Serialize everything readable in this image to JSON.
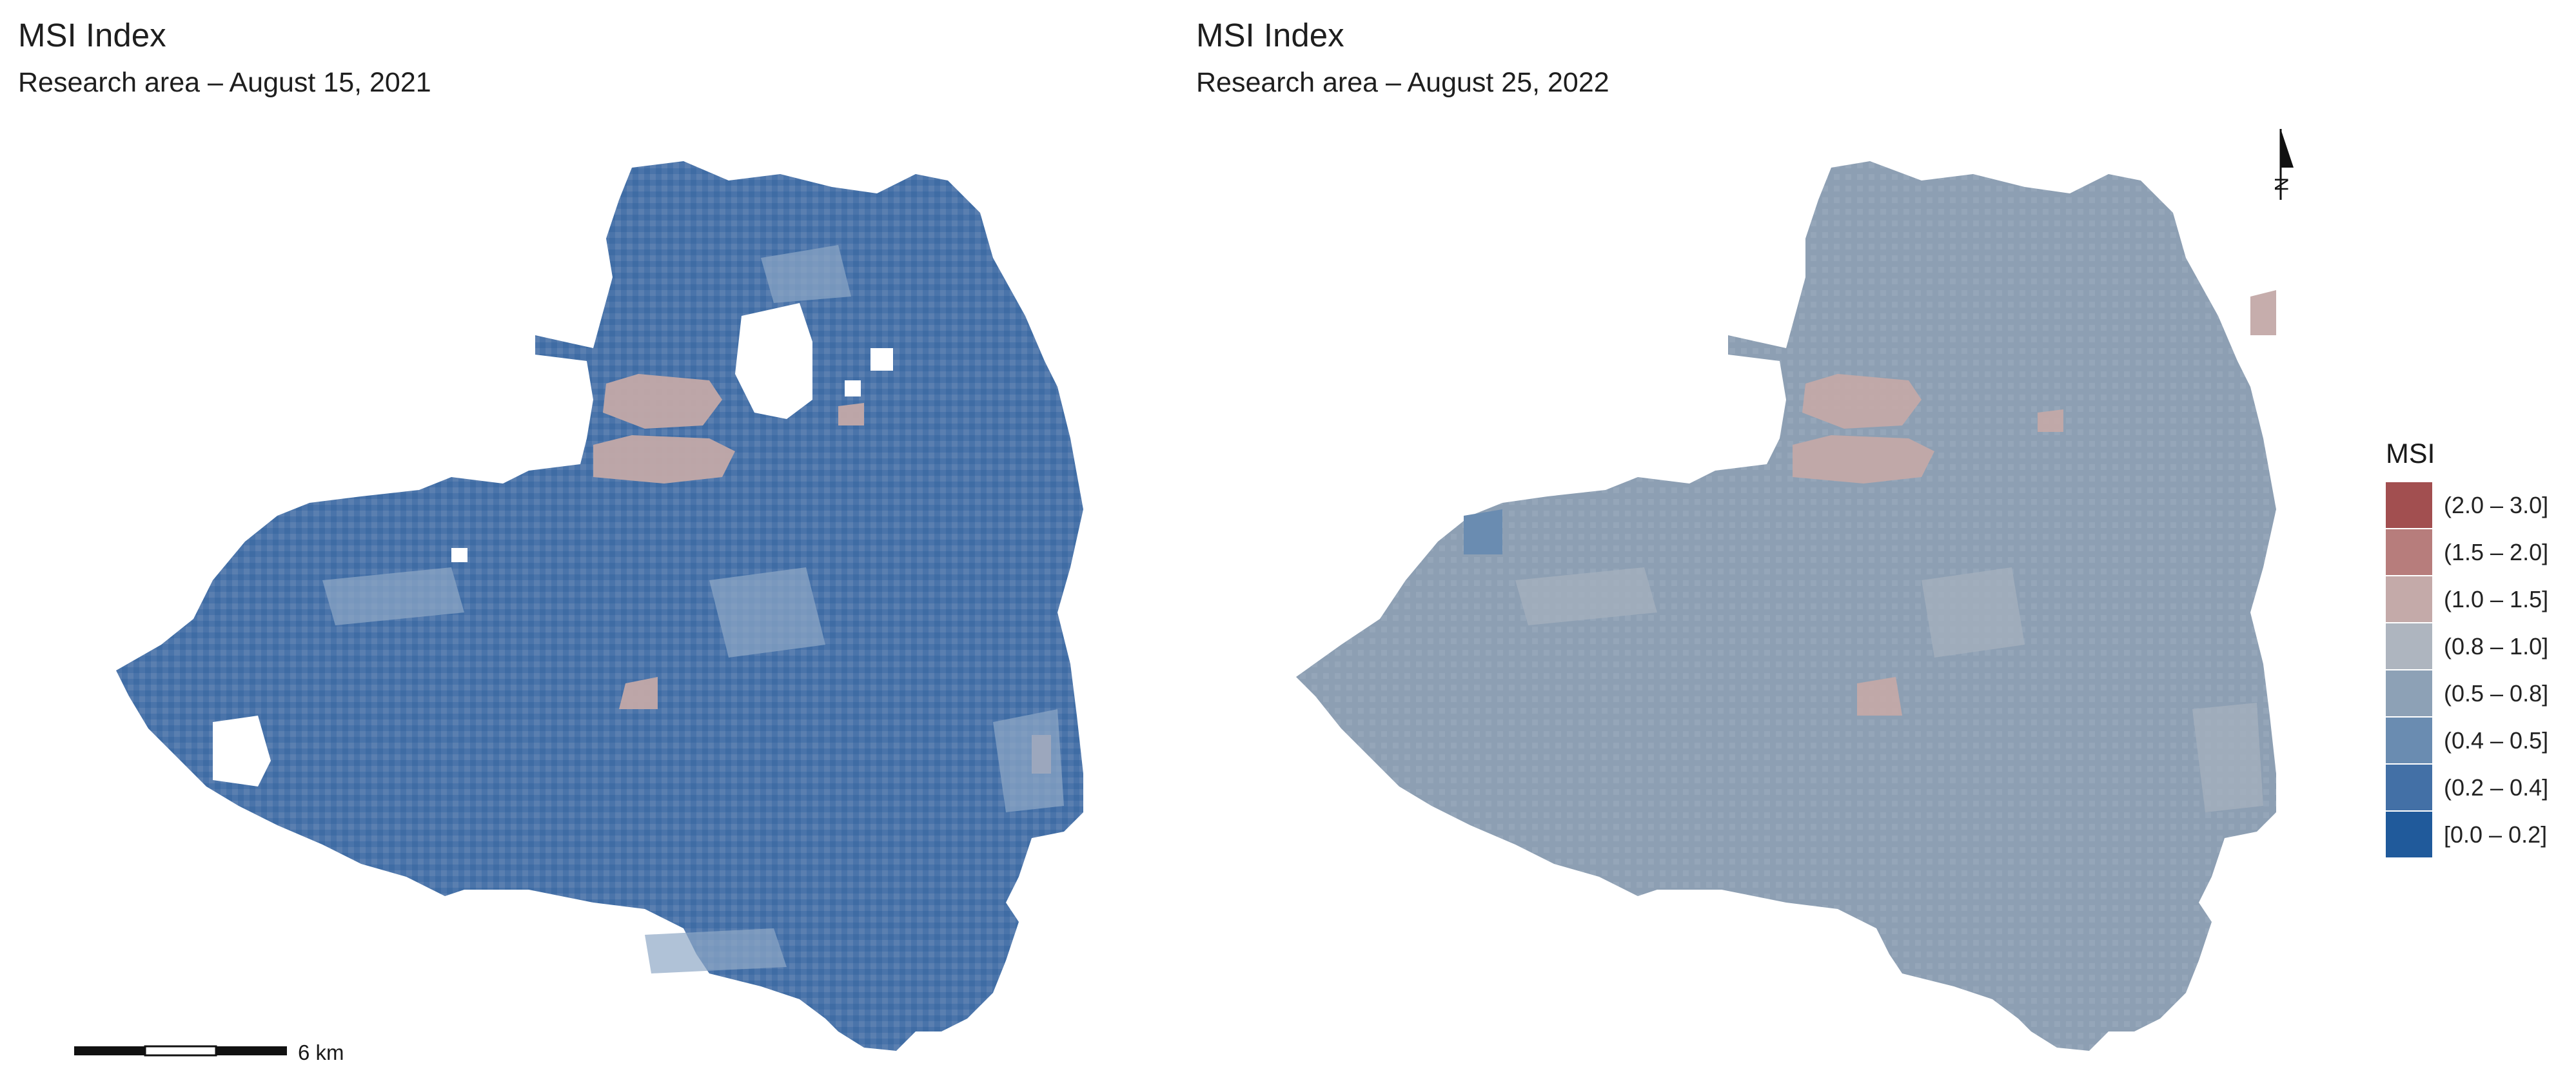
{
  "panels": [
    {
      "title": "MSI Index",
      "subtitle": "Research area – August 15, 2021"
    },
    {
      "title": "MSI Index",
      "subtitle": "Research area – August 25, 2022"
    }
  ],
  "legend": {
    "title": "MSI",
    "classes": [
      {
        "label": "(2.0 – 3.0]",
        "color": "#a24f50"
      },
      {
        "label": "(1.5 – 2.0]",
        "color": "#b77d7c"
      },
      {
        "label": "(1.0 – 1.5]",
        "color": "#c4aaa9"
      },
      {
        "label": "(0.8 – 1.0]",
        "color": "#aeb5bf"
      },
      {
        "label": "(0.5 – 0.8]",
        "color": "#8da1b6"
      },
      {
        "label": "(0.4 – 0.5]",
        "color": "#6a8cb1"
      },
      {
        "label": "(0.2 – 0.4]",
        "color": "#4370a6"
      },
      {
        "label": "[0.0 – 0.2]",
        "color": "#205a9b"
      }
    ]
  },
  "scale_bar": {
    "label": "6 km"
  },
  "north_arrow": {
    "label": "N"
  },
  "colors": {
    "map_2021_base": "#4a74aa",
    "map_2021_texture": "#7f9bbd",
    "map_2022_base": "#8d9fb3",
    "map_2022_texture": "#9facbd",
    "high_msi_patch": "#c3a9a8"
  }
}
